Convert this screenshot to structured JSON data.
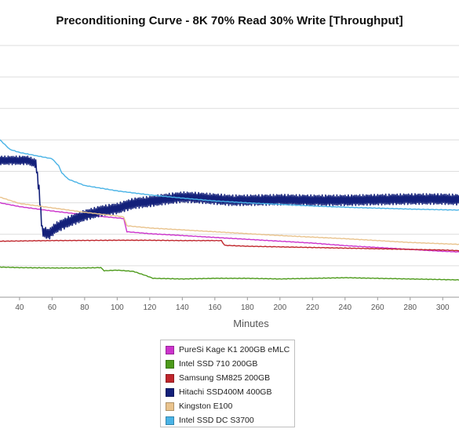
{
  "chart_data": {
    "type": "line",
    "title": "Preconditioning Curve - 8K 70% Read 30% Write [Throughput]",
    "xlabel": "Minutes",
    "ylabel": "",
    "x_ticks": [
      40,
      60,
      80,
      100,
      120,
      140,
      160,
      180,
      200,
      220,
      240,
      260,
      280,
      300
    ],
    "xlim": [
      28,
      310
    ],
    "ylim": [
      0,
      8
    ],
    "y_gridlines": [
      1,
      2,
      3,
      4,
      5,
      6,
      7,
      8
    ],
    "grid": true,
    "legend_position": "bottom-center",
    "series": [
      {
        "name": "PureSi Kage K1 200GB eMLC",
        "color": "#cc33cc",
        "points": [
          [
            28,
            3.0
          ],
          [
            40,
            2.88
          ],
          [
            60,
            2.74
          ],
          [
            80,
            2.62
          ],
          [
            100,
            2.52
          ],
          [
            104,
            2.5
          ],
          [
            106,
            2.08
          ],
          [
            120,
            2.02
          ],
          [
            140,
            1.96
          ],
          [
            160,
            1.9
          ],
          [
            180,
            1.84
          ],
          [
            200,
            1.78
          ],
          [
            220,
            1.72
          ],
          [
            240,
            1.64
          ],
          [
            260,
            1.58
          ],
          [
            280,
            1.52
          ],
          [
            300,
            1.46
          ],
          [
            310,
            1.44
          ]
        ]
      },
      {
        "name": "Intel SSD 710 200GB",
        "color": "#4c9a1a",
        "points": [
          [
            28,
            0.96
          ],
          [
            40,
            0.94
          ],
          [
            60,
            0.93
          ],
          [
            80,
            0.93
          ],
          [
            90,
            0.94
          ],
          [
            92,
            0.84
          ],
          [
            100,
            0.86
          ],
          [
            110,
            0.82
          ],
          [
            118,
            0.68
          ],
          [
            122,
            0.6
          ],
          [
            140,
            0.58
          ],
          [
            160,
            0.6
          ],
          [
            180,
            0.6
          ],
          [
            200,
            0.58
          ],
          [
            220,
            0.6
          ],
          [
            240,
            0.62
          ],
          [
            260,
            0.6
          ],
          [
            280,
            0.58
          ],
          [
            300,
            0.56
          ],
          [
            310,
            0.55
          ]
        ]
      },
      {
        "name": "Samsung SM825 200GB",
        "color": "#c0262c",
        "points": [
          [
            28,
            1.78
          ],
          [
            60,
            1.8
          ],
          [
            100,
            1.81
          ],
          [
            120,
            1.81
          ],
          [
            140,
            1.8
          ],
          [
            164,
            1.8
          ],
          [
            166,
            1.65
          ],
          [
            180,
            1.62
          ],
          [
            200,
            1.6
          ],
          [
            220,
            1.58
          ],
          [
            240,
            1.56
          ],
          [
            260,
            1.54
          ],
          [
            280,
            1.52
          ],
          [
            300,
            1.5
          ],
          [
            310,
            1.48
          ]
        ]
      },
      {
        "name": "Hitachi SSD400M 400GB",
        "color": "#13207a",
        "points": [
          [
            28,
            4.35
          ],
          [
            45,
            4.35
          ],
          [
            50,
            4.25
          ],
          [
            52,
            3.4
          ],
          [
            54,
            2.1
          ],
          [
            58,
            2.0
          ],
          [
            62,
            2.2
          ],
          [
            70,
            2.4
          ],
          [
            80,
            2.6
          ],
          [
            90,
            2.74
          ],
          [
            100,
            2.82
          ],
          [
            110,
            2.98
          ],
          [
            120,
            3.04
          ],
          [
            130,
            3.12
          ],
          [
            140,
            3.18
          ],
          [
            150,
            3.16
          ],
          [
            160,
            3.12
          ],
          [
            170,
            3.08
          ],
          [
            180,
            3.08
          ],
          [
            200,
            3.1
          ],
          [
            220,
            3.08
          ],
          [
            240,
            3.08
          ],
          [
            260,
            3.1
          ],
          [
            280,
            3.12
          ],
          [
            300,
            3.12
          ],
          [
            310,
            3.1
          ]
        ],
        "oscillation_amplitude": 0.17
      },
      {
        "name": "Kingston E100",
        "color": "#e9c38d",
        "points": [
          [
            28,
            3.18
          ],
          [
            40,
            2.98
          ],
          [
            60,
            2.84
          ],
          [
            80,
            2.7
          ],
          [
            100,
            2.58
          ],
          [
            104,
            2.55
          ],
          [
            106,
            2.27
          ],
          [
            120,
            2.2
          ],
          [
            140,
            2.14
          ],
          [
            160,
            2.08
          ],
          [
            180,
            2.02
          ],
          [
            200,
            1.96
          ],
          [
            220,
            1.91
          ],
          [
            240,
            1.86
          ],
          [
            260,
            1.8
          ],
          [
            280,
            1.74
          ],
          [
            300,
            1.7
          ],
          [
            310,
            1.68
          ]
        ]
      },
      {
        "name": "Intel SSD DC S3700",
        "color": "#49b3e6",
        "points": [
          [
            28,
            5.0
          ],
          [
            34,
            4.7
          ],
          [
            40,
            4.6
          ],
          [
            50,
            4.5
          ],
          [
            60,
            4.4
          ],
          [
            64,
            4.18
          ],
          [
            66,
            3.95
          ],
          [
            70,
            3.75
          ],
          [
            80,
            3.55
          ],
          [
            100,
            3.38
          ],
          [
            120,
            3.25
          ],
          [
            140,
            3.15
          ],
          [
            160,
            3.06
          ],
          [
            180,
            3.0
          ],
          [
            200,
            2.95
          ],
          [
            220,
            2.9
          ],
          [
            240,
            2.86
          ],
          [
            260,
            2.83
          ],
          [
            280,
            2.8
          ],
          [
            300,
            2.78
          ],
          [
            310,
            2.77
          ]
        ]
      }
    ]
  }
}
